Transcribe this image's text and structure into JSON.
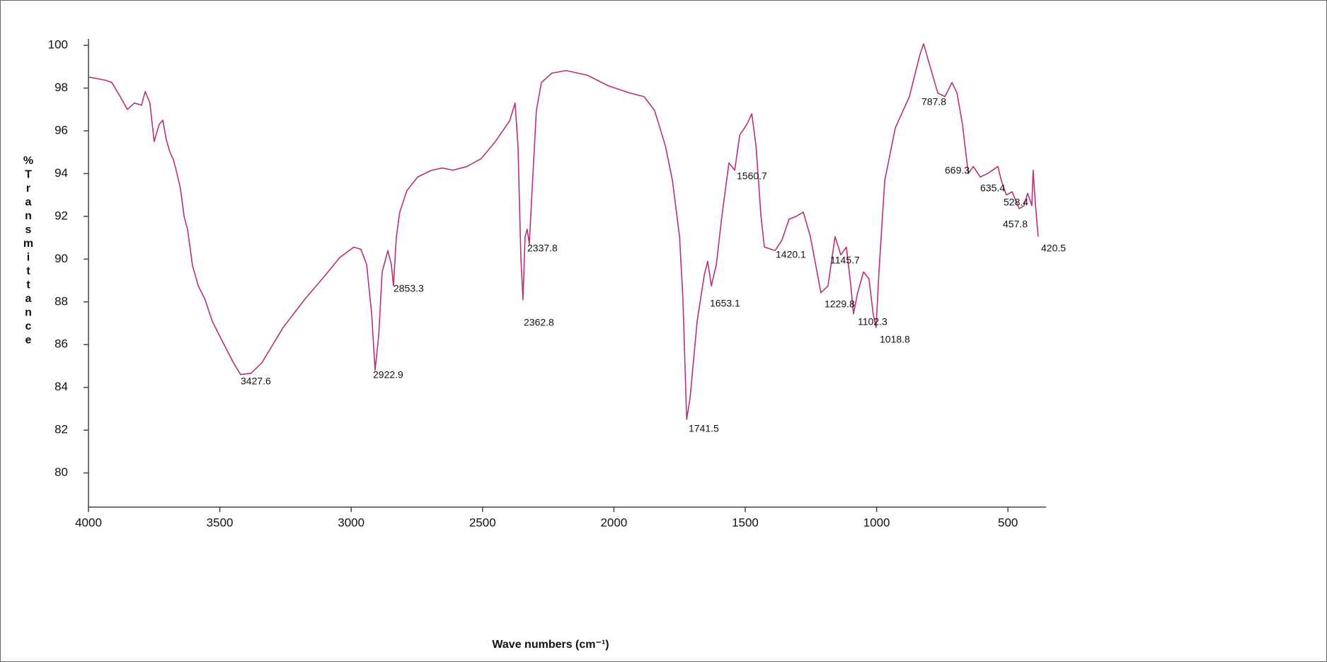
{
  "chart_data": {
    "type": "line",
    "x_label": "Wave numbers (cm⁻¹)",
    "y_label": "%Transmittance",
    "color": "#b8307a",
    "xlim": [
      4000,
      355
    ],
    "ylim": [
      78.4,
      100.3
    ],
    "xticks": [
      4000,
      3500,
      3000,
      2500,
      2000,
      1500,
      1000,
      500
    ],
    "yticks": [
      80,
      82,
      84,
      86,
      88,
      90,
      92,
      94,
      96,
      98,
      100
    ],
    "x": [
      4000,
      3933,
      3911,
      3879,
      3852,
      3825,
      3798,
      3784,
      3766,
      3750,
      3731,
      3717,
      3704,
      3690,
      3677,
      3663,
      3650,
      3636,
      3623,
      3604,
      3582,
      3556,
      3529,
      3488,
      3448,
      3421,
      3381,
      3340,
      3259,
      3178,
      3098,
      3044,
      2990,
      2963,
      2941,
      2922,
      2909,
      2895,
      2882,
      2860,
      2847,
      2839,
      2828,
      2815,
      2788,
      2747,
      2693,
      2653,
      2613,
      2559,
      2505,
      2451,
      2397,
      2376,
      2365,
      2354,
      2346,
      2338,
      2330,
      2322,
      2311,
      2295,
      2276,
      2236,
      2182,
      2101,
      2020,
      1939,
      1885,
      1845,
      1804,
      1777,
      1750,
      1737,
      1723,
      1710,
      1683,
      1656,
      1643,
      1629,
      1610,
      1589,
      1562,
      1540,
      1521,
      1494,
      1475,
      1459,
      1440,
      1427,
      1386,
      1360,
      1333,
      1306,
      1279,
      1252,
      1212,
      1185,
      1158,
      1136,
      1115,
      1098,
      1088,
      1072,
      1050,
      1029,
      1013,
      1002,
      991,
      969,
      929,
      875,
      835,
      821,
      802,
      767,
      740,
      713,
      694,
      673,
      651,
      632,
      605,
      578,
      538,
      525,
      506,
      484,
      457,
      439,
      425,
      409,
      404,
      396,
      385
    ],
    "values": [
      98.52,
      98.36,
      98.26,
      97.6,
      97.0,
      97.3,
      97.2,
      97.84,
      97.3,
      95.5,
      96.3,
      96.5,
      95.6,
      95.0,
      94.66,
      94.0,
      93.3,
      92.0,
      91.4,
      89.7,
      88.75,
      88.1,
      87.1,
      86.1,
      85.15,
      84.6,
      84.66,
      85.15,
      86.8,
      88.1,
      89.25,
      90.07,
      90.56,
      90.46,
      89.74,
      87.44,
      84.8,
      86.46,
      89.4,
      90.4,
      89.74,
      88.75,
      91.05,
      92.2,
      93.2,
      93.84,
      94.16,
      94.26,
      94.16,
      94.33,
      94.7,
      95.5,
      96.46,
      97.3,
      95.3,
      90.07,
      88.1,
      91.05,
      91.4,
      90.7,
      93.3,
      96.95,
      98.26,
      98.7,
      98.82,
      98.6,
      98.1,
      97.77,
      97.6,
      96.95,
      95.3,
      93.67,
      91.05,
      88.1,
      82.5,
      83.5,
      87.1,
      89.25,
      89.9,
      88.75,
      89.74,
      92.0,
      94.5,
      94.16,
      95.8,
      96.3,
      96.8,
      95.3,
      92.0,
      90.56,
      90.4,
      90.9,
      91.87,
      92.0,
      92.2,
      91.05,
      88.43,
      88.75,
      91.05,
      90.2,
      90.56,
      88.75,
      87.44,
      88.43,
      89.4,
      89.08,
      87.44,
      86.8,
      89.4,
      93.67,
      96.13,
      97.6,
      99.57,
      100.07,
      99.25,
      97.77,
      97.6,
      98.26,
      97.77,
      96.3,
      94.0,
      94.33,
      93.84,
      94.0,
      94.33,
      93.67,
      93.0,
      93.15,
      92.36,
      92.5,
      93.08,
      92.5,
      94.16,
      92.66,
      91.05
    ],
    "peaks": [
      3427.6,
      2922.9,
      2853.3,
      2337.8,
      2362.8,
      1741.5,
      1653.1,
      1560.7,
      1420.1,
      1229.8,
      1145.7,
      1102.3,
      1018.8,
      787.8,
      669.3,
      635.4,
      528.4,
      457.8,
      420.5
    ]
  }
}
